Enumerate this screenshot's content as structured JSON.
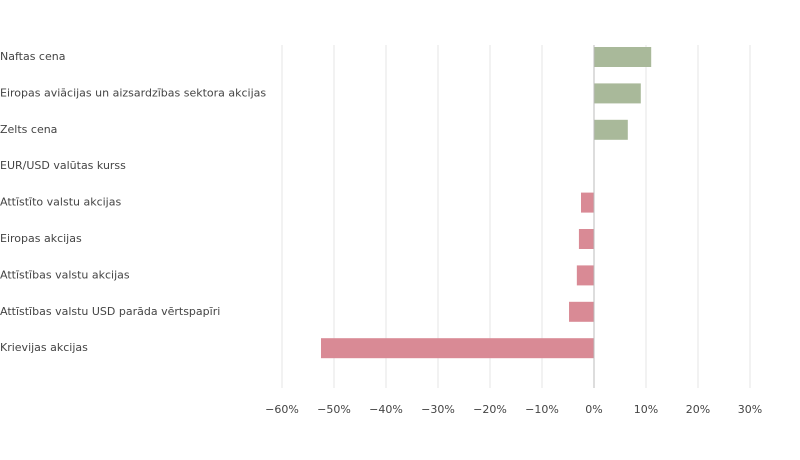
{
  "chart_data": {
    "type": "hbar",
    "categories": [
      "Naftas cena",
      "Eiropas aviācijas un aizsardzības sektora akcijas",
      "Zelts cena",
      "EUR/USD valūtas kurss",
      "Attīstīto valstu akcijas",
      "Eiropas akcijas",
      "Attīstības valstu akcijas",
      "Attīstības valstu USD parāda vērtspapīri",
      "Krievijas akcijas"
    ],
    "values": [
      11,
      9,
      6.5,
      0,
      -2.5,
      -2.9,
      -3.3,
      -4.8,
      -52.5
    ],
    "positive_color": "#a9b99a",
    "negative_color": "#d98a95",
    "xlim": [
      -60,
      30
    ],
    "xticks": [
      {
        "value": -60,
        "label": "−60%"
      },
      {
        "value": -50,
        "label": "−50%"
      },
      {
        "value": -40,
        "label": "−40%"
      },
      {
        "value": -30,
        "label": "−30%"
      },
      {
        "value": -20,
        "label": "−20%"
      },
      {
        "value": -10,
        "label": "−10%"
      },
      {
        "value": 0,
        "label": "0%"
      },
      {
        "value": 10,
        "label": "10%"
      },
      {
        "value": 20,
        "label": "20%"
      },
      {
        "value": 30,
        "label": "30%"
      }
    ],
    "grid": true
  }
}
